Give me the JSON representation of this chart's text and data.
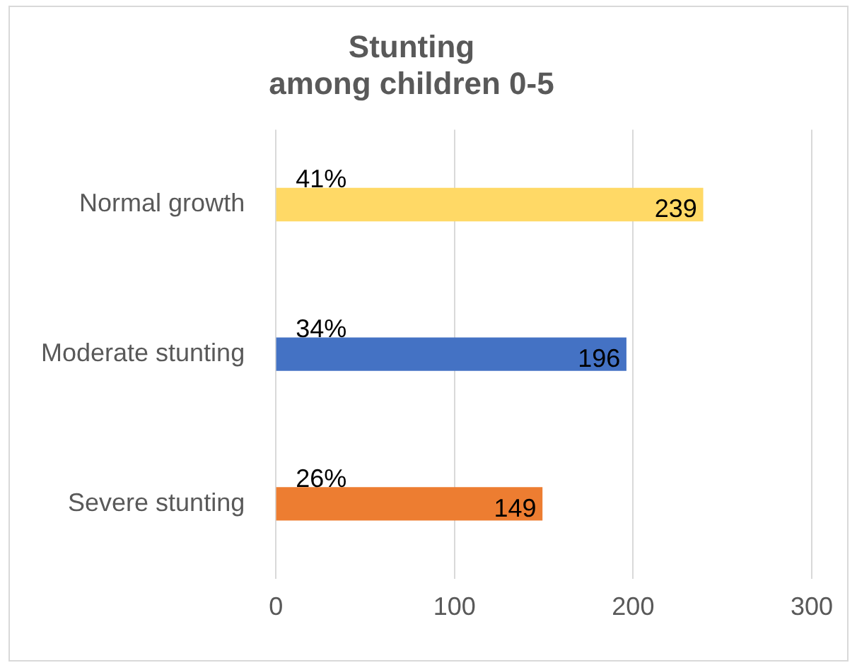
{
  "chart_data": {
    "type": "bar",
    "orientation": "horizontal",
    "title": "Stunting\namong children 0-5",
    "categories": [
      "Normal growth",
      "Moderate stunting",
      "Severe stunting"
    ],
    "values": [
      239,
      196,
      149
    ],
    "colors": [
      "#ffd966",
      "#4472c4",
      "#ed7d31"
    ],
    "xlim": [
      0,
      300
    ],
    "xticks": [
      0,
      100,
      200,
      300
    ],
    "grid": "x",
    "data_labels": true,
    "annotations": [
      "41%",
      "34%",
      "26%"
    ]
  }
}
